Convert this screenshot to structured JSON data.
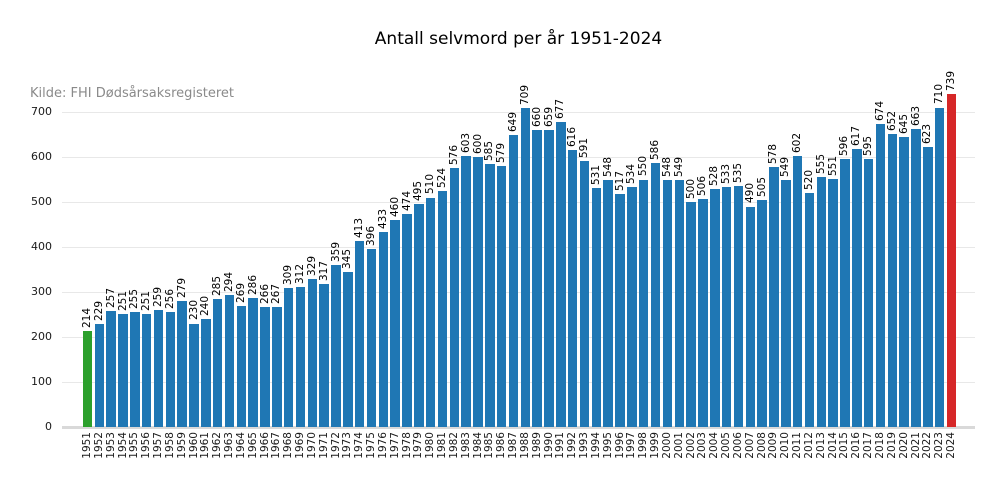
{
  "title": "Antall selvmord per år 1951-2024",
  "source_note": "Kilde: FHI Dødsårsaksregisteret",
  "chart_data": {
    "type": "bar",
    "title": "Antall selvmord per år 1951-2024",
    "source": "Kilde: FHI Dødsårsaksregisteret",
    "xlabel": "",
    "ylabel": "",
    "ylim": [
      0,
      700
    ],
    "yticks": [
      0,
      100,
      200,
      300,
      400,
      500,
      600,
      700
    ],
    "grid": true,
    "legend": false,
    "bar_value_labels_rotated_90": true,
    "categories": [
      "1951",
      "1952",
      "1953",
      "1954",
      "1955",
      "1956",
      "1957",
      "1958",
      "1959",
      "1960",
      "1961",
      "1962",
      "1963",
      "1964",
      "1965",
      "1966",
      "1967",
      "1968",
      "1969",
      "1970",
      "1971",
      "1972",
      "1973",
      "1974",
      "1975",
      "1976",
      "1977",
      "1978",
      "1979",
      "1980",
      "1981",
      "1982",
      "1983",
      "1984",
      "1985",
      "1986",
      "1987",
      "1988",
      "1989",
      "1990",
      "1991",
      "1992",
      "1993",
      "1994",
      "1995",
      "1996",
      "1997",
      "1998",
      "1999",
      "2000",
      "2001",
      "2002",
      "2003",
      "2004",
      "2005",
      "2006",
      "2007",
      "2008",
      "2009",
      "2010",
      "2011",
      "2012",
      "2013",
      "2014",
      "2015",
      "2016",
      "2017",
      "2018",
      "2019",
      "2020",
      "2021",
      "2022",
      "2023",
      "2024"
    ],
    "values": [
      214,
      229,
      257,
      251,
      255,
      251,
      259,
      256,
      279,
      230,
      240,
      285,
      294,
      269,
      286,
      266,
      267,
      309,
      312,
      329,
      317,
      359,
      345,
      413,
      396,
      433,
      460,
      474,
      495,
      510,
      524,
      576,
      603,
      600,
      585,
      579,
      649,
      709,
      660,
      659,
      677,
      616,
      591,
      531,
      548,
      517,
      534,
      550,
      586,
      548,
      549,
      500,
      506,
      528,
      533,
      535,
      490,
      505,
      578,
      549,
      602,
      520,
      555,
      551,
      596,
      617,
      595,
      674,
      652,
      645,
      663,
      623,
      710,
      739
    ],
    "colors": {
      "default": "#1f77b4",
      "1951": "#2ca02c",
      "2024": "#d62728"
    }
  }
}
